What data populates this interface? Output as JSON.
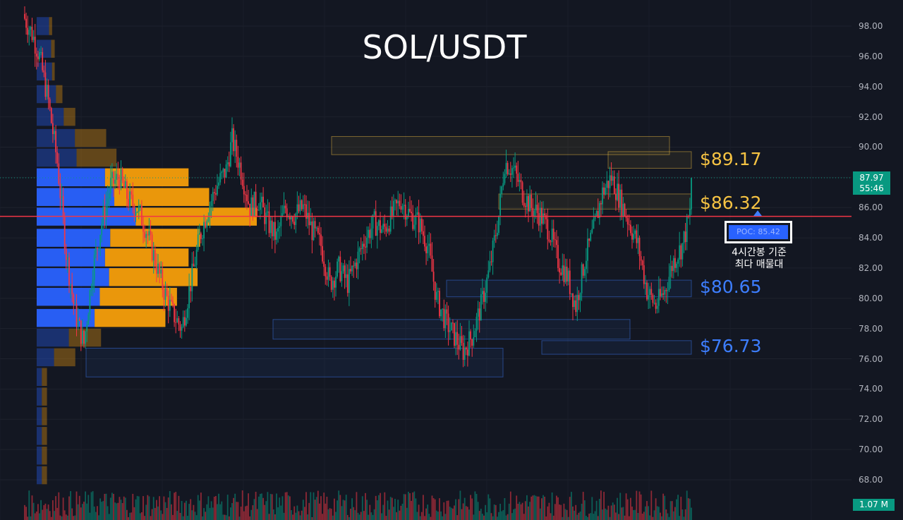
{
  "title": "SOL/USDT",
  "levels": [
    {
      "label": "$89.17",
      "color": "#f6c343"
    },
    {
      "label": "$86.32",
      "color": "#f6c343"
    },
    {
      "label": "$80.65",
      "color": "#3d7eff"
    },
    {
      "label": "$76.73",
      "color": "#3d7eff"
    }
  ],
  "poc": {
    "label": "POC: 85.42",
    "note_line1": "4시간봉 기준",
    "note_line2": "최다 매물대"
  },
  "last_price": {
    "price": "87.97",
    "countdown": "55:46"
  },
  "volume_tag": "1.07 M",
  "colors": {
    "up": "#089981",
    "down": "#f23645",
    "poc_line": "#f23645",
    "profile_blue": "#2962ff",
    "profile_orange": "#f59e0b"
  },
  "chart_data": {
    "type": "candlestick",
    "title": "SOL/USDT",
    "y_axis": {
      "range": [
        66.5,
        99.5
      ],
      "ticks": [
        "98.00",
        "96.00",
        "94.00",
        "92.00",
        "90.00",
        "88.00",
        "86.00",
        "84.00",
        "82.00",
        "80.00",
        "78.00",
        "76.00",
        "74.00",
        "72.00",
        "70.00",
        "68.00"
      ]
    },
    "poc": 85.42,
    "current_price": 87.97,
    "close_path": [
      [
        0,
        98.5
      ],
      [
        5,
        97.5
      ],
      [
        10,
        96
      ],
      [
        16,
        93
      ],
      [
        22,
        89
      ],
      [
        28,
        83
      ],
      [
        34,
        79
      ],
      [
        40,
        77
      ],
      [
        46,
        82
      ],
      [
        52,
        85
      ],
      [
        58,
        87.5
      ],
      [
        64,
        88
      ],
      [
        70,
        86.5
      ],
      [
        76,
        86
      ],
      [
        82,
        84.5
      ],
      [
        88,
        82.5
      ],
      [
        94,
        80.5
      ],
      [
        100,
        79
      ],
      [
        106,
        78
      ],
      [
        112,
        81
      ],
      [
        118,
        84
      ],
      [
        124,
        86
      ],
      [
        130,
        87.5
      ],
      [
        136,
        88.5
      ],
      [
        140,
        90.5
      ],
      [
        146,
        88.5
      ],
      [
        152,
        86
      ],
      [
        158,
        86.5
      ],
      [
        164,
        85
      ],
      [
        170,
        84
      ],
      [
        176,
        86
      ],
      [
        182,
        85.5
      ],
      [
        188,
        86
      ],
      [
        194,
        84.5
      ],
      [
        200,
        83.5
      ],
      [
        206,
        81
      ],
      [
        212,
        82
      ],
      [
        218,
        81
      ],
      [
        224,
        82.5
      ],
      [
        230,
        84
      ],
      [
        236,
        85
      ],
      [
        242,
        84.5
      ],
      [
        248,
        85.5
      ],
      [
        254,
        86.5
      ],
      [
        260,
        85.5
      ],
      [
        266,
        85
      ],
      [
        272,
        83.5
      ],
      [
        278,
        80
      ],
      [
        284,
        78.5
      ],
      [
        290,
        77.5
      ],
      [
        296,
        76.5
      ],
      [
        302,
        77.5
      ],
      [
        308,
        79.5
      ],
      [
        314,
        82
      ],
      [
        320,
        85.5
      ],
      [
        324,
        89
      ],
      [
        330,
        88.5
      ],
      [
        336,
        87
      ],
      [
        342,
        86
      ],
      [
        348,
        85.5
      ],
      [
        354,
        84.5
      ],
      [
        360,
        82.5
      ],
      [
        366,
        81.5
      ],
      [
        372,
        79.5
      ],
      [
        378,
        82.5
      ],
      [
        384,
        84.5
      ],
      [
        390,
        87
      ],
      [
        396,
        88
      ],
      [
        402,
        86.5
      ],
      [
        408,
        85
      ],
      [
        414,
        83.5
      ],
      [
        420,
        80.5
      ],
      [
        426,
        79.5
      ],
      [
        432,
        80.5
      ],
      [
        438,
        82.5
      ],
      [
        444,
        83.5
      ],
      [
        450,
        86
      ]
    ],
    "volume_profile": [
      {
        "price": 98.0,
        "total": 12,
        "up_share": 0.8
      },
      {
        "price": 96.5,
        "total": 14,
        "up_share": 0.8
      },
      {
        "price": 95.0,
        "total": 14,
        "up_share": 0.85
      },
      {
        "price": 93.5,
        "total": 20,
        "up_share": 0.75
      },
      {
        "price": 92.0,
        "total": 30,
        "up_share": 0.7
      },
      {
        "price": 90.6,
        "total": 54,
        "up_share": 0.55
      },
      {
        "price": 89.3,
        "total": 62,
        "up_share": 0.5
      },
      {
        "price": 88.0,
        "total": 118,
        "up_share": 0.45
      },
      {
        "price": 86.7,
        "total": 134,
        "up_share": 0.45
      },
      {
        "price": 85.4,
        "total": 171,
        "up_share": 0.45
      },
      {
        "price": 84.0,
        "total": 127,
        "up_share": 0.45
      },
      {
        "price": 82.7,
        "total": 118,
        "up_share": 0.45
      },
      {
        "price": 81.4,
        "total": 125,
        "up_share": 0.45
      },
      {
        "price": 80.1,
        "total": 109,
        "up_share": 0.45
      },
      {
        "price": 78.7,
        "total": 100,
        "up_share": 0.45
      },
      {
        "price": 77.4,
        "total": 50,
        "up_share": 0.5
      },
      {
        "price": 76.1,
        "total": 30,
        "up_share": 0.45
      },
      {
        "price": 74.8,
        "total": 8,
        "up_share": 0.5
      },
      {
        "price": 73.5,
        "total": 8,
        "up_share": 0.5
      },
      {
        "price": 72.2,
        "total": 8,
        "up_share": 0.5
      },
      {
        "price": 70.9,
        "total": 8,
        "up_share": 0.5
      },
      {
        "price": 69.6,
        "total": 8,
        "up_share": 0.5
      },
      {
        "price": 68.3,
        "total": 8,
        "up_share": 0.5
      }
    ],
    "zones": [
      {
        "p1": 90.7,
        "p2": 89.5,
        "color": "#f6c343"
      },
      {
        "p1": 89.7,
        "p2": 88.6,
        "color": "#f6c343"
      },
      {
        "p1": 86.9,
        "p2": 85.9,
        "color": "#f6c343"
      },
      {
        "p1": 81.2,
        "p2": 80.1,
        "color": "#3d7eff"
      },
      {
        "p1": 78.6,
        "p2": 77.3,
        "color": "#3d7eff"
      },
      {
        "p1": 77.2,
        "p2": 76.3,
        "color": "#3d7eff"
      },
      {
        "p1": 76.7,
        "p2": 74.8,
        "color": "#3d7eff"
      }
    ]
  }
}
